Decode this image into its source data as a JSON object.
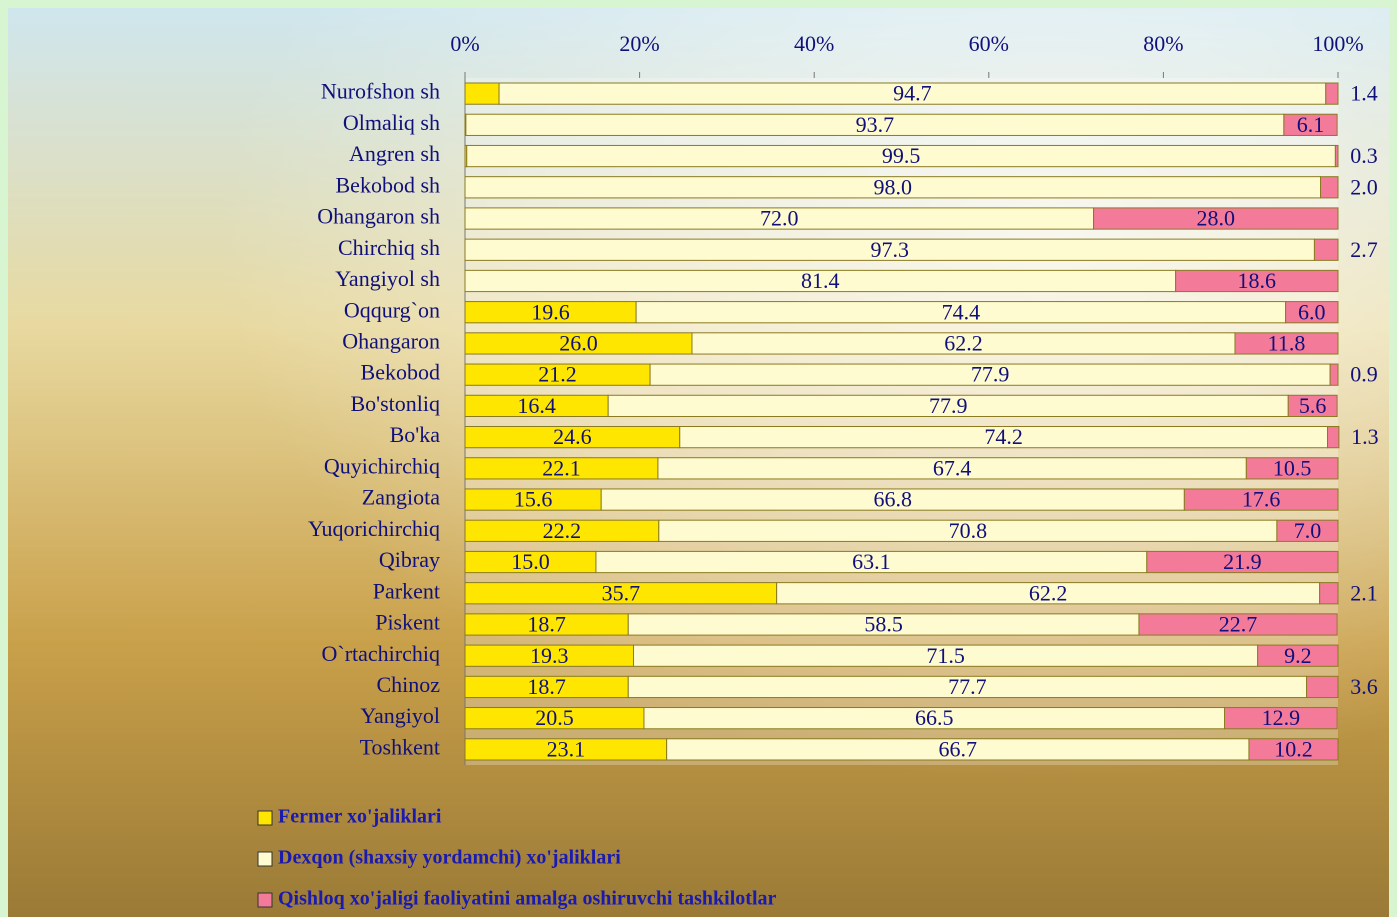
{
  "chart_data": {
    "type": "stacked-bar-horizontal",
    "categories": [
      "Nurofshon sh",
      "Olmaliq sh",
      "Angren sh",
      "Bekobod sh",
      "Ohangaron sh",
      "Chirchiq sh",
      "Yangiyol sh",
      "Oqqurg`on",
      "Ohangaron",
      "Bekobod",
      "Bo'stonliq",
      "Bo'ka",
      "Quyichirchiq",
      "Zangiota",
      "Yuqorichirchiq",
      "Qibray",
      "Parkent",
      "Piskent",
      "O`rtachirchiq",
      "Chinoz",
      "Yangiyol",
      "Toshkent"
    ],
    "series": [
      {
        "name": "Fermer xo'jaliklari",
        "color": "#ffe600",
        "values": [
          3.9,
          0.1,
          0.2,
          0,
          0,
          0,
          0,
          19.6,
          26,
          21.2,
          16.4,
          24.6,
          22.1,
          15.6,
          22.2,
          15,
          35.7,
          18.7,
          19.3,
          18.7,
          20.5,
          23.1
        ],
        "value_labels": [
          "3.9",
          "0.1",
          "0.2",
          "0.0",
          "0.0",
          "0.0",
          "0.0",
          "19.6",
          "26.0",
          "21.2",
          "16.4",
          "24.6",
          "22.1",
          "15.6",
          "22.2",
          "15.0",
          "35.7",
          "18.7",
          "19.3",
          "18.7",
          "20.5",
          "23.1"
        ]
      },
      {
        "name": "Dexqon (shaxsiy yordamchi) xo'jaliklari",
        "color": "#fffbd0",
        "values": [
          94.7,
          93.7,
          99.5,
          98,
          72,
          97.3,
          81.4,
          74.4,
          62.2,
          77.9,
          77.9,
          74.2,
          67.4,
          66.8,
          70.8,
          63.1,
          62.2,
          58.5,
          71.5,
          77.7,
          66.5,
          66.7
        ],
        "value_labels": [
          "94.7",
          "93.7",
          "99.5",
          "98.0",
          "72.0",
          "97.3",
          "81.4",
          "74.4",
          "62.2",
          "77.9",
          "77.9",
          "74.2",
          "67.4",
          "66.8",
          "70.8",
          "63.1",
          "62.2",
          "58.5",
          "71.5",
          "77.7",
          "66.5",
          "66.7"
        ]
      },
      {
        "name": "Qishloq xo'jaligi faoliyatini amalga oshiruvchi tashkilotlar",
        "color": "#f47a9a",
        "values": [
          1.4,
          6.1,
          0.3,
          2,
          28,
          2.7,
          18.6,
          6,
          11.8,
          0.9,
          5.6,
          1.3,
          10.5,
          17.6,
          7,
          21.9,
          2.1,
          22.7,
          9.2,
          3.6,
          12.9,
          10.2
        ],
        "value_labels": [
          "1.4",
          "6.1",
          "0.3",
          "2.0",
          "28.0",
          "2.7",
          "18.6",
          "6.0",
          "11.8",
          "0.9",
          "5.6",
          "1.3",
          "10.5",
          "17.6",
          "7.0",
          "21.9",
          "2.1",
          "22.7",
          "9.2",
          "3.6",
          "12.9",
          "10.2"
        ]
      }
    ],
    "xlim": [
      0,
      100
    ],
    "xticks": [
      {
        "value": 0,
        "label": "0%"
      },
      {
        "value": 20,
        "label": "20%"
      },
      {
        "value": 40,
        "label": "40%"
      },
      {
        "value": 60,
        "label": "60%"
      },
      {
        "value": 80,
        "label": "80%"
      },
      {
        "value": 100,
        "label": "100%"
      }
    ]
  }
}
